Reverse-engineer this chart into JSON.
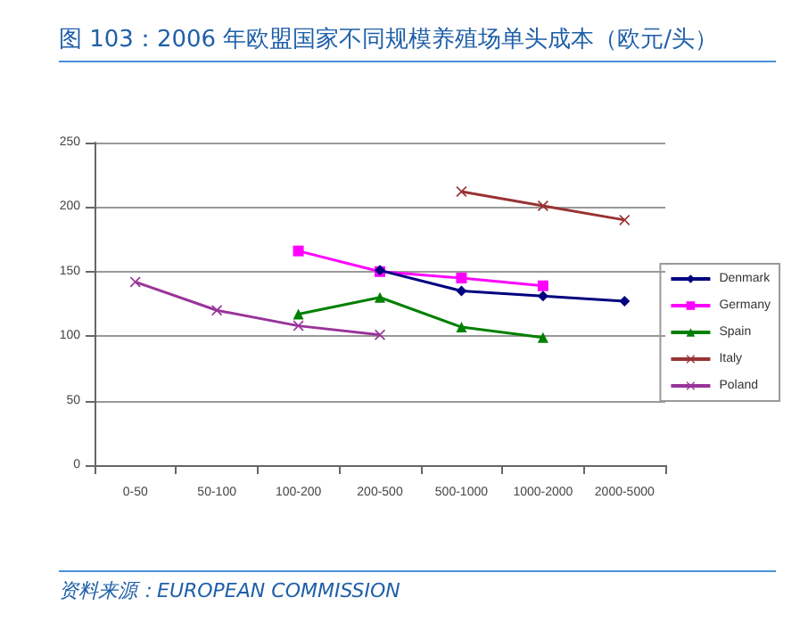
{
  "chart_data": {
    "type": "line",
    "title": "图 103：2006 年欧盟国家不同规模养殖场单头成本（欧元/头）",
    "categories": [
      "0-50",
      "50-100",
      "100-200",
      "200-500",
      "500-1000",
      "1000-2000",
      "2000-5000"
    ],
    "series": [
      {
        "name": "Denmark",
        "color": "#000080",
        "marker": "diamond",
        "values": [
          null,
          null,
          null,
          151,
          135,
          131,
          127
        ]
      },
      {
        "name": "Germany",
        "color": "#ff00ff",
        "marker": "square",
        "values": [
          null,
          null,
          166,
          150,
          145,
          139,
          null
        ]
      },
      {
        "name": "Spain",
        "color": "#008000",
        "marker": "triangle",
        "values": [
          null,
          null,
          117,
          130,
          107,
          99,
          null
        ]
      },
      {
        "name": "Italy",
        "color": "#993333",
        "marker": "cross",
        "values": [
          null,
          null,
          null,
          null,
          212,
          201,
          190
        ]
      },
      {
        "name": "Poland",
        "color": "#993399",
        "marker": "cross",
        "values": [
          142,
          120,
          108,
          101,
          null,
          null,
          null
        ]
      }
    ],
    "ylim": [
      0,
      250
    ],
    "yticks": [
      0,
      50,
      100,
      150,
      200,
      250
    ],
    "grid": "y",
    "legend": "right",
    "annotations": [
      "资料来源：EUROPEAN COMMISSION"
    ]
  }
}
